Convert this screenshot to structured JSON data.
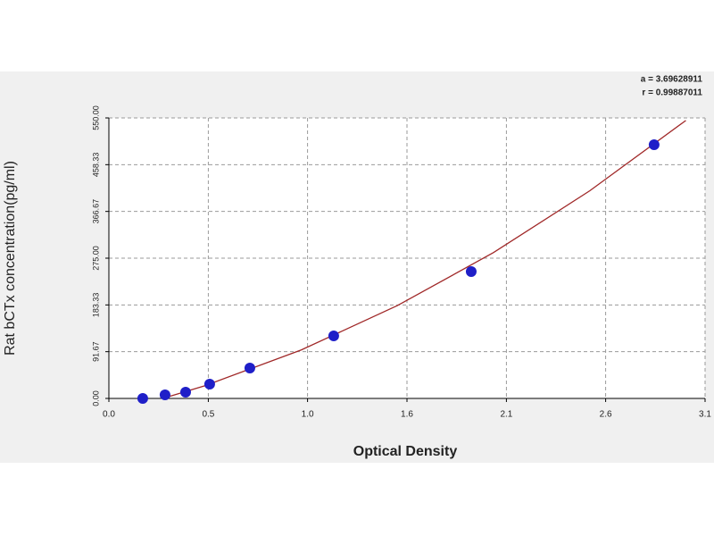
{
  "chart_data": {
    "type": "scatter",
    "annotations": [
      "a = 3.69628911",
      "r = 0.99887011"
    ],
    "xlabel": "Optical Density",
    "ylabel": "Rat bCTx concentration(pg/ml)",
    "xlim": [
      0.0,
      3.1
    ],
    "xticks": [
      {
        "value": 0.0,
        "label": "0.0"
      },
      {
        "value": 0.517,
        "label": "0.5"
      },
      {
        "value": 1.033,
        "label": "1.0"
      },
      {
        "value": 1.55,
        "label": "1.6"
      },
      {
        "value": 2.067,
        "label": "2.1"
      },
      {
        "value": 2.583,
        "label": "2.6"
      },
      3.1
    ],
    "ylim": [
      0,
      550
    ],
    "yticks": [
      {
        "value": 0,
        "label": "0.00"
      },
      {
        "value": 91.67,
        "label": "91.67"
      },
      {
        "value": 183.33,
        "label": "183.33"
      },
      {
        "value": 275,
        "label": "275.00"
      },
      {
        "value": 366.67,
        "label": "366.67"
      },
      {
        "value": 458.33,
        "label": "458.33"
      },
      {
        "value": 550,
        "label": "550.00"
      }
    ],
    "grid": true,
    "series": [
      {
        "color": "#1f1fc8",
        "x": [
          0.176,
          0.292,
          0.399,
          0.524,
          0.733,
          1.169,
          1.884,
          2.835
        ],
        "values": [
          0,
          7,
          12.3,
          28,
          59.6,
          122.6,
          248.7,
          497.5
        ]
      }
    ],
    "fit": {
      "color": "#a02828",
      "x": [
        0.28,
        0.5,
        1.0,
        1.5,
        2.0,
        2.5,
        3.0
      ],
      "values": [
        0,
        25,
        95,
        182,
        286,
        407,
        545
      ]
    }
  }
}
